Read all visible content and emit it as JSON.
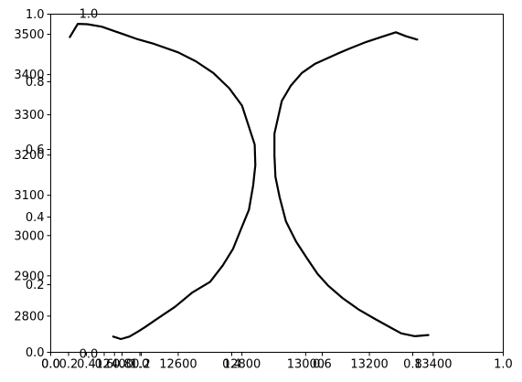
{
  "chart_data": {
    "type": "line",
    "title": "",
    "xlabel": "",
    "ylabel": "",
    "grid": false,
    "legend": "none",
    "line_color": "#000000",
    "frame_axes": {
      "xlim": [
        0,
        1
      ],
      "ylim": [
        0,
        1
      ],
      "x_ticks": [
        0.0,
        0.2,
        0.4,
        0.6,
        0.8,
        1.0
      ],
      "y_ticks": [
        0.0,
        0.2,
        0.4,
        0.6,
        0.8,
        1.0
      ],
      "x_tick_labels": [
        "0.0",
        "0.2",
        "0.4",
        "0.6",
        "0.8",
        "1.0"
      ],
      "y_tick_labels": [
        "0.0",
        "0.2",
        "0.4",
        "0.6",
        "0.8",
        "1.0"
      ]
    },
    "overlay_axes": {
      "x_ticks": [
        0.0,
        0.2,
        0.4,
        0.6,
        0.8,
        1.0
      ],
      "x_tick_labels": [
        "0.0",
        "0.2",
        "0.4",
        "0.6",
        "0.8",
        "1.0"
      ],
      "y_ticks": [
        0.0,
        1.0
      ],
      "y_tick_labels": [
        "0.0",
        "1.0"
      ]
    },
    "main_axes": {
      "xlim": [
        12200,
        13620
      ],
      "ylim": [
        2710,
        3550
      ],
      "x_ticks": [
        12400,
        12600,
        12800,
        13000,
        13200,
        13400
      ],
      "x_tick_labels": [
        "12400",
        "12600",
        "12800",
        "13000",
        "13200",
        "13400"
      ],
      "y_ticks": [
        2800,
        2900,
        3000,
        3100,
        3200,
        3300,
        3400,
        3500
      ],
      "y_tick_labels": [
        "2800",
        "2900",
        "3000",
        "3100",
        "3200",
        "3300",
        "3400",
        "3500"
      ]
    },
    "series": [
      {
        "points": [
          [
            12260,
            3493
          ],
          [
            12285,
            3526
          ],
          [
            12315,
            3525
          ],
          [
            12360,
            3519
          ],
          [
            12425,
            3501
          ],
          [
            12468,
            3489
          ],
          [
            12525,
            3476
          ],
          [
            12600,
            3455
          ],
          [
            12655,
            3433
          ],
          [
            12710,
            3404
          ],
          [
            12760,
            3366
          ],
          [
            12800,
            3323
          ],
          [
            12840,
            3226
          ],
          [
            12842,
            3175
          ],
          [
            12835,
            3124
          ],
          [
            12822,
            3064
          ],
          [
            12795,
            3012
          ],
          [
            12772,
            2967
          ],
          [
            12740,
            2926
          ],
          [
            12700,
            2885
          ],
          [
            12645,
            2859
          ],
          [
            12590,
            2823
          ],
          [
            12530,
            2791
          ],
          [
            12495,
            2772
          ],
          [
            12475,
            2762
          ],
          [
            12447,
            2749
          ],
          [
            12420,
            2743
          ],
          [
            12396,
            2749
          ]
        ]
      },
      {
        "points": [
          [
            13350,
            3487
          ],
          [
            13315,
            3495
          ],
          [
            13283,
            3505
          ],
          [
            13240,
            3494
          ],
          [
            13190,
            3481
          ],
          [
            13145,
            3467
          ],
          [
            13100,
            3452
          ],
          [
            13030,
            3427
          ],
          [
            12988,
            3404
          ],
          [
            12953,
            3372
          ],
          [
            12925,
            3334
          ],
          [
            12902,
            3253
          ],
          [
            12902,
            3199
          ],
          [
            12905,
            3146
          ],
          [
            12918,
            3096
          ],
          [
            12938,
            3035
          ],
          [
            12970,
            2985
          ],
          [
            13003,
            2945
          ],
          [
            13037,
            2905
          ],
          [
            13070,
            2876
          ],
          [
            13115,
            2845
          ],
          [
            13165,
            2817
          ],
          [
            13215,
            2794
          ],
          [
            13270,
            2770
          ],
          [
            13300,
            2757
          ],
          [
            13343,
            2750
          ],
          [
            13385,
            2753
          ]
        ]
      }
    ]
  }
}
